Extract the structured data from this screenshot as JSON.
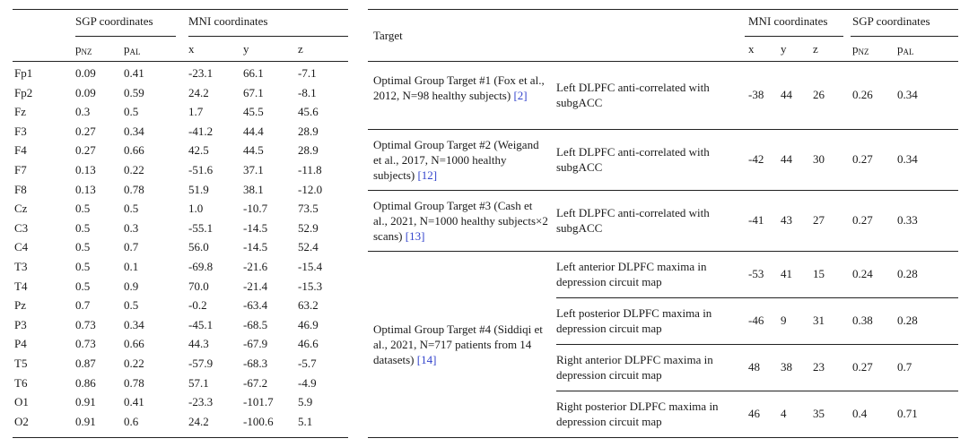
{
  "left_table": {
    "group_headers": {
      "sgp": "SGP coordinates",
      "mni": "MNI coordinates"
    },
    "col_headers": {
      "pnz_base": "p",
      "pnz_sub": "NZ",
      "pal_base": "p",
      "pal_sub": "AL",
      "x": "x",
      "y": "y",
      "z": "z"
    },
    "rows": [
      [
        "Fp1",
        "0.09",
        "0.41",
        "-23.1",
        "66.1",
        "-7.1"
      ],
      [
        "Fp2",
        "0.09",
        "0.59",
        "24.2",
        "67.1",
        "-8.1"
      ],
      [
        "Fz",
        "0.3",
        "0.5",
        "1.7",
        "45.5",
        "45.6"
      ],
      [
        "F3",
        "0.27",
        "0.34",
        "-41.2",
        "44.4",
        "28.9"
      ],
      [
        "F4",
        "0.27",
        "0.66",
        "42.5",
        "44.5",
        "28.9"
      ],
      [
        "F7",
        "0.13",
        "0.22",
        "-51.6",
        "37.1",
        "-11.8"
      ],
      [
        "F8",
        "0.13",
        "0.78",
        "51.9",
        "38.1",
        "-12.0"
      ],
      [
        "Cz",
        "0.5",
        "0.5",
        "1.0",
        "-10.7",
        "73.5"
      ],
      [
        "C3",
        "0.5",
        "0.3",
        "-55.1",
        "-14.5",
        "52.9"
      ],
      [
        "C4",
        "0.5",
        "0.7",
        "56.0",
        "-14.5",
        "52.4"
      ],
      [
        "T3",
        "0.5",
        "0.1",
        "-69.8",
        "-21.6",
        "-15.4"
      ],
      [
        "T4",
        "0.5",
        "0.9",
        "70.0",
        "-21.4",
        "-15.3"
      ],
      [
        "Pz",
        "0.7",
        "0.5",
        "-0.2",
        "-63.4",
        "63.2"
      ],
      [
        "P3",
        "0.73",
        "0.34",
        "-45.1",
        "-68.5",
        "46.9"
      ],
      [
        "P4",
        "0.73",
        "0.66",
        "44.3",
        "-67.9",
        "46.6"
      ],
      [
        "T5",
        "0.87",
        "0.22",
        "-57.9",
        "-68.3",
        "-5.7"
      ],
      [
        "T6",
        "0.86",
        "0.78",
        "57.1",
        "-67.2",
        "-4.9"
      ],
      [
        "O1",
        "0.91",
        "0.41",
        "-23.3",
        "-101.7",
        "5.9"
      ],
      [
        "O2",
        "0.91",
        "0.6",
        "24.2",
        "-100.6",
        "5.1"
      ]
    ]
  },
  "right_table": {
    "headers": {
      "target": "Target",
      "mni": "MNI coordinates",
      "sgp": "SGP coordinates",
      "x": "x",
      "y": "y",
      "z": "z",
      "pnz_base": "p",
      "pnz_sub": "NZ",
      "pal_base": "p",
      "pal_sub": "AL"
    },
    "groups": [
      {
        "name": "Optimal Group Target #1 (Fox et al., 2012, N=98 healthy subjects)",
        "cite": "[2]",
        "rows": [
          {
            "desc": "Left DLPFC anti-correlated with subgACC",
            "x": "-38",
            "y": "44",
            "z": "26",
            "pnz": "0.26",
            "pal": "0.34"
          }
        ]
      },
      {
        "name": "Optimal Group Target #2 (Weigand et al., 2017, N=1000 healthy subjects)",
        "cite": "[12]",
        "rows": [
          {
            "desc": "Left DLPFC anti-correlated with subgACC",
            "x": "-42",
            "y": "44",
            "z": "30",
            "pnz": "0.27",
            "pal": "0.34"
          }
        ]
      },
      {
        "name": "Optimal Group Target #3 (Cash et al., 2021, N=1000 healthy subjects×2 scans)",
        "cite": "[13]",
        "rows": [
          {
            "desc": "Left DLPFC anti-correlated with subgACC",
            "x": "-41",
            "y": "43",
            "z": "27",
            "pnz": "0.27",
            "pal": "0.33"
          }
        ]
      },
      {
        "name": "Optimal Group Target #4 (Siddiqi et al., 2021, N=717 patients from 14 datasets)",
        "cite": "[14]",
        "rows": [
          {
            "desc": "Left anterior DLPFC maxima in depression circuit map",
            "x": "-53",
            "y": "41",
            "z": "15",
            "pnz": "0.24",
            "pal": "0.28"
          },
          {
            "desc": "Left posterior DLPFC maxima in depression circuit map",
            "x": "-46",
            "y": "9",
            "z": "31",
            "pnz": "0.38",
            "pal": "0.28"
          },
          {
            "desc": "Right anterior DLPFC maxima in depression circuit map",
            "x": "48",
            "y": "38",
            "z": "23",
            "pnz": "0.27",
            "pal": "0.7"
          },
          {
            "desc": "Right posterior DLPFC maxima in depression circuit map",
            "x": "46",
            "y": "4",
            "z": "35",
            "pnz": "0.4",
            "pal": "0.71"
          }
        ]
      }
    ]
  }
}
